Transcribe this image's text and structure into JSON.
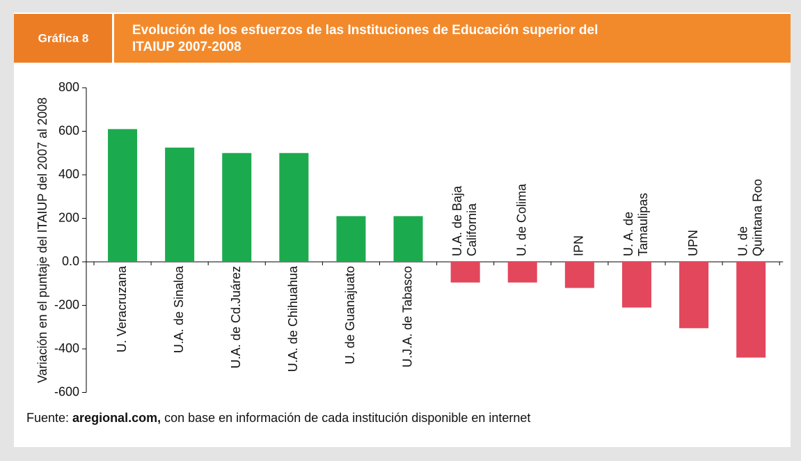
{
  "chart_data": {
    "type": "bar",
    "figure_label": "Gráfica 8",
    "title": [
      "Evolución de los esfuerzos de las Instituciones de Educación superior del",
      "ITAIUP 2007-2008"
    ],
    "ylabel": "Variación en el puntaje del ITAIUP del 2007 al 2008",
    "categories": [
      "U. Veracruzana",
      "U.A. de Sinaloa",
      "U.A. de Cd.Juárez",
      "U.A. de Chihuahua",
      "U. de Guanajuato",
      "U.J.A. de Tabasco",
      [
        "U.A. de Baja",
        "California"
      ],
      "U. de Colima",
      "IPN",
      [
        "U. A. de",
        "Tamaulipas"
      ],
      "UPN",
      [
        "U. de",
        "Quintana Roo"
      ]
    ],
    "values": [
      610,
      525,
      500,
      500,
      210,
      210,
      -95,
      -95,
      -120,
      -210,
      -305,
      -440
    ],
    "positive_color": "#1caa4e",
    "negative_color": "#e2475c",
    "ylim": [
      -600,
      800
    ],
    "yticks": [
      800,
      600,
      400,
      200,
      {
        "value": 0,
        "label": "0.0"
      },
      -200,
      -400,
      -600
    ],
    "source": {
      "prefix": "Fuente: ",
      "bold": "aregional.com,",
      "rest": " con base en información de cada institución disponible en internet"
    }
  }
}
